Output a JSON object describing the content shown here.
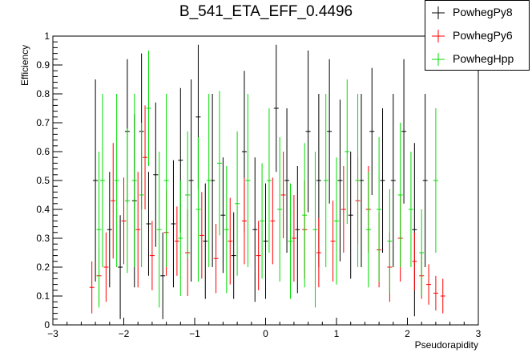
{
  "chart_data": {
    "type": "scatter",
    "title": "B_541_ETA_EFF_0.4496",
    "xlabel": "Pseudorapidity",
    "ylabel": "Efficiency",
    "xlim": [
      -3,
      3
    ],
    "ylim": [
      0,
      1
    ],
    "xticks": [
      "−3",
      "−2",
      "−1",
      "0",
      "1",
      "2",
      "3"
    ],
    "yticks": [
      "0",
      "0.1",
      "0.2",
      "0.3",
      "0.4",
      "0.5",
      "0.6",
      "0.7",
      "0.8",
      "0.9",
      "1"
    ],
    "grid": false,
    "legend_position": "top-right",
    "series": [
      {
        "name": "PowhegPy8",
        "color": "#000000",
        "points": [
          {
            "x": -2.4,
            "y": 0.5,
            "err": 0.35
          },
          {
            "x": -2.2,
            "y": 0.33,
            "err": 0.2
          },
          {
            "x": -2.05,
            "y": 0.2,
            "err": 0.18
          },
          {
            "x": -1.95,
            "y": 0.67,
            "err": 0.25
          },
          {
            "x": -1.85,
            "y": 0.43,
            "err": 0.3
          },
          {
            "x": -1.75,
            "y": 0.67,
            "err": 0.27
          },
          {
            "x": -1.65,
            "y": 0.35,
            "err": 0.18
          },
          {
            "x": -1.55,
            "y": 0.52,
            "err": 0.25
          },
          {
            "x": -1.45,
            "y": 0.17,
            "err": 0.15
          },
          {
            "x": -1.3,
            "y": 0.35,
            "err": 0.22
          },
          {
            "x": -1.2,
            "y": 0.57,
            "err": 0.25
          },
          {
            "x": -1.05,
            "y": 0.5,
            "err": 0.35
          },
          {
            "x": -0.95,
            "y": 0.72,
            "err": 0.25
          },
          {
            "x": -0.85,
            "y": 0.29,
            "err": 0.2
          },
          {
            "x": -0.75,
            "y": 0.5,
            "err": 0.3
          },
          {
            "x": -0.6,
            "y": 0.38,
            "err": 0.2
          },
          {
            "x": -0.45,
            "y": 0.24,
            "err": 0.15
          },
          {
            "x": -0.3,
            "y": 0.6,
            "err": 0.28
          },
          {
            "x": -0.15,
            "y": 0.33,
            "err": 0.25
          },
          {
            "x": 0.0,
            "y": 0.29,
            "err": 0.2
          },
          {
            "x": 0.15,
            "y": 0.75,
            "err": 0.22
          },
          {
            "x": 0.3,
            "y": 0.5,
            "err": 0.25
          },
          {
            "x": 0.45,
            "y": 0.33,
            "err": 0.22
          },
          {
            "x": 0.6,
            "y": 0.67,
            "err": 0.28
          },
          {
            "x": 0.75,
            "y": 0.5,
            "err": 0.3
          },
          {
            "x": 0.9,
            "y": 0.67,
            "err": 0.25
          },
          {
            "x": 1.05,
            "y": 0.5,
            "err": 0.28
          },
          {
            "x": 1.2,
            "y": 0.38,
            "err": 0.22
          },
          {
            "x": 1.35,
            "y": 0.5,
            "err": 0.3
          },
          {
            "x": 1.5,
            "y": 0.67,
            "err": 0.22
          },
          {
            "x": 1.65,
            "y": 0.5,
            "err": 0.25
          },
          {
            "x": 1.8,
            "y": 0.5,
            "err": 0.3
          },
          {
            "x": 1.95,
            "y": 0.67,
            "err": 0.25
          },
          {
            "x": 2.1,
            "y": 0.33,
            "err": 0.3
          },
          {
            "x": 2.25,
            "y": 0.5,
            "err": 0.3
          }
        ]
      },
      {
        "name": "PowhegPy6",
        "color": "#ff0000",
        "points": [
          {
            "x": -2.45,
            "y": 0.13,
            "err": 0.09
          },
          {
            "x": -2.35,
            "y": 0.17,
            "err": 0.1
          },
          {
            "x": -2.25,
            "y": 0.2,
            "err": 0.12
          },
          {
            "x": -2.15,
            "y": 0.43,
            "err": 0.2
          },
          {
            "x": -2.0,
            "y": 0.36,
            "err": 0.15
          },
          {
            "x": -1.8,
            "y": 0.33,
            "err": 0.2
          },
          {
            "x": -1.7,
            "y": 0.58,
            "err": 0.18
          },
          {
            "x": -1.6,
            "y": 0.24,
            "err": 0.12
          },
          {
            "x": -1.4,
            "y": 0.32,
            "err": 0.15
          },
          {
            "x": -1.25,
            "y": 0.29,
            "err": 0.12
          },
          {
            "x": -1.1,
            "y": 0.25,
            "err": 0.15
          },
          {
            "x": -0.9,
            "y": 0.31,
            "err": 0.15
          },
          {
            "x": -0.7,
            "y": 0.23,
            "err": 0.12
          },
          {
            "x": -0.5,
            "y": 0.29,
            "err": 0.15
          },
          {
            "x": -0.3,
            "y": 0.36,
            "err": 0.15
          },
          {
            "x": -0.1,
            "y": 0.24,
            "err": 0.12
          },
          {
            "x": 0.1,
            "y": 0.36,
            "err": 0.15
          },
          {
            "x": 0.25,
            "y": 0.45,
            "err": 0.15
          },
          {
            "x": 0.4,
            "y": 0.3,
            "err": 0.15
          },
          {
            "x": 0.55,
            "y": 0.33,
            "err": 0.17
          },
          {
            "x": 0.75,
            "y": 0.25,
            "err": 0.12
          },
          {
            "x": 0.95,
            "y": 0.29,
            "err": 0.14
          },
          {
            "x": 1.1,
            "y": 0.4,
            "err": 0.15
          },
          {
            "x": 1.3,
            "y": 0.43,
            "err": 0.15
          },
          {
            "x": 1.45,
            "y": 0.4,
            "err": 0.15
          },
          {
            "x": 1.6,
            "y": 0.26,
            "err": 0.13
          },
          {
            "x": 1.75,
            "y": 0.2,
            "err": 0.12
          },
          {
            "x": 1.9,
            "y": 0.3,
            "err": 0.15
          },
          {
            "x": 2.1,
            "y": 0.22,
            "err": 0.1
          },
          {
            "x": 2.2,
            "y": 0.17,
            "err": 0.08
          },
          {
            "x": 2.3,
            "y": 0.14,
            "err": 0.07
          },
          {
            "x": 2.4,
            "y": 0.11,
            "err": 0.06
          },
          {
            "x": 2.5,
            "y": 0.1,
            "err": 0.06
          }
        ]
      },
      {
        "name": "PowhegHpp",
        "color": "#00dd00",
        "points": [
          {
            "x": -2.35,
            "y": 0.33,
            "err": 0.27
          },
          {
            "x": -2.3,
            "y": 0.5,
            "err": 0.3
          },
          {
            "x": -2.1,
            "y": 0.5,
            "err": 0.3
          },
          {
            "x": -1.95,
            "y": 0.43,
            "err": 0.25
          },
          {
            "x": -1.85,
            "y": 0.5,
            "err": 0.3
          },
          {
            "x": -1.75,
            "y": 0.45,
            "err": 0.25
          },
          {
            "x": -1.65,
            "y": 0.75,
            "err": 0.2
          },
          {
            "x": -1.5,
            "y": 0.33,
            "err": 0.27
          },
          {
            "x": -1.4,
            "y": 0.5,
            "err": 0.3
          },
          {
            "x": -1.2,
            "y": 0.3,
            "err": 0.2
          },
          {
            "x": -1.1,
            "y": 0.45,
            "err": 0.22
          },
          {
            "x": -0.95,
            "y": 0.4,
            "err": 0.25
          },
          {
            "x": -0.8,
            "y": 0.5,
            "err": 0.3
          },
          {
            "x": -0.65,
            "y": 0.56,
            "err": 0.25
          },
          {
            "x": -0.55,
            "y": 0.33,
            "err": 0.22
          },
          {
            "x": -0.4,
            "y": 0.42,
            "err": 0.25
          },
          {
            "x": -0.25,
            "y": 0.5,
            "err": 0.3
          },
          {
            "x": -0.05,
            "y": 0.36,
            "err": 0.2
          },
          {
            "x": 0.05,
            "y": 0.5,
            "err": 0.25
          },
          {
            "x": 0.2,
            "y": 0.4,
            "err": 0.25
          },
          {
            "x": 0.35,
            "y": 0.29,
            "err": 0.2
          },
          {
            "x": 0.55,
            "y": 0.38,
            "err": 0.25
          },
          {
            "x": 0.7,
            "y": 0.33,
            "err": 0.27
          },
          {
            "x": 0.85,
            "y": 0.5,
            "err": 0.3
          },
          {
            "x": 1.0,
            "y": 0.36,
            "err": 0.22
          },
          {
            "x": 1.15,
            "y": 0.6,
            "err": 0.25
          },
          {
            "x": 1.3,
            "y": 0.5,
            "err": 0.3
          },
          {
            "x": 1.45,
            "y": 0.33,
            "err": 0.2
          },
          {
            "x": 1.6,
            "y": 0.4,
            "err": 0.25
          },
          {
            "x": 1.75,
            "y": 0.29,
            "err": 0.18
          },
          {
            "x": 1.9,
            "y": 0.45,
            "err": 0.25
          },
          {
            "x": 2.05,
            "y": 0.4,
            "err": 0.2
          },
          {
            "x": 2.2,
            "y": 0.25,
            "err": 0.15
          },
          {
            "x": 2.4,
            "y": 0.5,
            "err": 0.25
          }
        ]
      }
    ]
  }
}
